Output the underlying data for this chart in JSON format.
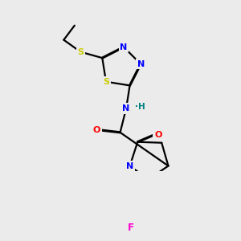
{
  "background_color": "#ebebeb",
  "bond_color": "#000000",
  "atom_colors": {
    "N": "#0000ff",
    "S": "#cccc00",
    "O": "#ff0000",
    "F": "#ff00cc",
    "H": "#008080",
    "C": "#000000"
  },
  "figsize": [
    3.0,
    3.0
  ],
  "dpi": 100
}
